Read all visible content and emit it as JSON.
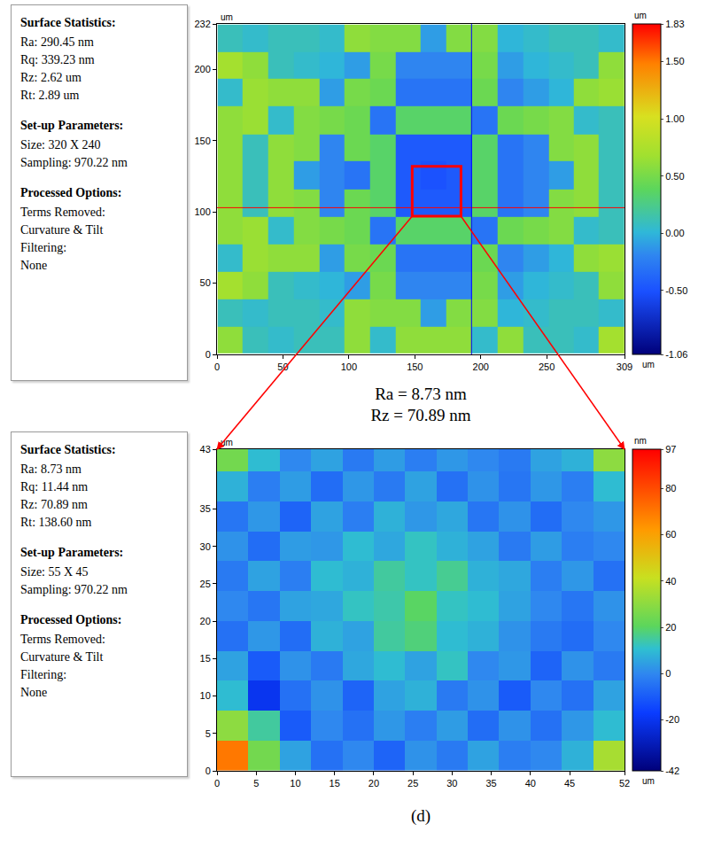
{
  "chart_data": [
    {
      "type": "heatmap",
      "x": [
        10,
        29,
        48,
        68,
        87,
        106,
        126,
        145,
        164,
        184,
        203,
        222,
        242,
        261,
        280,
        299
      ],
      "y": [
        10,
        29,
        48,
        68,
        87,
        106,
        126,
        145,
        164,
        184,
        203,
        222
      ],
      "z": [
        [
          0.6,
          0.1,
          0.05,
          0.1,
          0.1,
          0.6,
          0.05,
          0.6,
          0.6,
          0.6,
          0.05,
          0.6,
          0.1,
          0.1,
          0.05,
          0.7
        ],
        [
          0.1,
          0.05,
          0.1,
          0.1,
          0.05,
          0.6,
          0.55,
          0.55,
          -0.1,
          0.55,
          0.55,
          0.0,
          0.05,
          0.1,
          0.1,
          0.05
        ],
        [
          0.7,
          0.6,
          0.1,
          0.05,
          0.0,
          -0.1,
          0.5,
          -0.2,
          -0.2,
          -0.2,
          0.5,
          -0.1,
          0.0,
          0.05,
          0.1,
          0.6
        ],
        [
          0.05,
          0.65,
          0.6,
          0.6,
          -0.1,
          0.5,
          0.45,
          -0.3,
          -0.3,
          -0.3,
          0.45,
          -0.2,
          -0.1,
          0.0,
          0.6,
          0.65
        ],
        [
          0.6,
          0.65,
          0.05,
          0.55,
          0.5,
          0.45,
          -0.3,
          0.35,
          0.35,
          0.35,
          -0.3,
          0.45,
          0.5,
          0.55,
          0.05,
          0.1
        ],
        [
          0.6,
          0.1,
          0.6,
          0.55,
          -0.2,
          0.45,
          0.35,
          -0.45,
          -0.45,
          -0.45,
          0.35,
          -0.3,
          -0.2,
          0.55,
          0.6,
          0.1
        ],
        [
          0.6,
          0.1,
          0.6,
          -0.1,
          -0.2,
          -0.3,
          0.35,
          -0.45,
          -0.5,
          -0.45,
          0.35,
          -0.3,
          -0.2,
          -0.1,
          0.6,
          0.1
        ],
        [
          0.6,
          0.1,
          0.6,
          0.55,
          -0.2,
          0.45,
          0.35,
          -0.45,
          -0.45,
          -0.45,
          0.35,
          -0.3,
          -0.2,
          0.55,
          0.6,
          0.1
        ],
        [
          0.6,
          0.65,
          0.05,
          0.55,
          0.5,
          0.45,
          -0.3,
          0.35,
          0.35,
          0.35,
          -0.3,
          0.45,
          0.5,
          0.55,
          0.05,
          0.1
        ],
        [
          0.05,
          0.65,
          0.6,
          0.6,
          -0.1,
          0.5,
          0.45,
          -0.3,
          -0.3,
          -0.3,
          0.45,
          -0.2,
          -0.1,
          0.0,
          0.6,
          0.65
        ],
        [
          0.7,
          0.6,
          0.1,
          0.05,
          0.0,
          -0.1,
          0.5,
          -0.2,
          -0.2,
          -0.2,
          0.5,
          -0.1,
          0.0,
          0.05,
          0.1,
          0.6
        ],
        [
          0.1,
          0.05,
          0.1,
          0.1,
          0.05,
          0.6,
          0.55,
          0.55,
          -0.1,
          0.55,
          0.55,
          0.0,
          0.05,
          0.1,
          0.1,
          0.05
        ]
      ],
      "xlim": [
        0,
        309
      ],
      "ylim": [
        0,
        232
      ],
      "xticks": [
        0,
        50,
        100,
        150,
        200,
        250,
        309
      ],
      "yticks": [
        0,
        50,
        100,
        150,
        200,
        232
      ],
      "zlim": [
        -1.06,
        1.83
      ],
      "zticks": [
        -1.06,
        {
          "value": -0.5,
          "label": "-0.50"
        },
        {
          "value": 0,
          "label": "0.00"
        },
        {
          "value": 0.5,
          "label": "0.50"
        },
        {
          "value": 1,
          "label": "1.00"
        },
        {
          "value": 1.5,
          "label": "1.50"
        },
        1.83
      ],
      "x_unit": "um",
      "y_unit": "um",
      "z_unit": "um",
      "zoom_region": {
        "x": [
          148,
          185
        ],
        "y": [
          97,
          132
        ]
      },
      "profile_lines": {
        "x": 193,
        "y": 103
      }
    },
    {
      "type": "heatmap",
      "x": [
        2,
        6,
        10,
        14,
        18,
        22,
        26,
        30,
        34,
        38,
        42,
        46,
        50
      ],
      "y": [
        2,
        6,
        10,
        14,
        18,
        22,
        26,
        30,
        34,
        38,
        42
      ],
      "z": [
        [
          70,
          25,
          5,
          -5,
          0,
          -8,
          2,
          -3,
          5,
          -2,
          0,
          8,
          35
        ],
        [
          30,
          15,
          -10,
          0,
          -5,
          3,
          -2,
          4,
          -6,
          2,
          -5,
          3,
          10
        ],
        [
          10,
          -20,
          -5,
          2,
          -8,
          5,
          8,
          -3,
          2,
          -10,
          0,
          -5,
          5
        ],
        [
          5,
          -10,
          2,
          -3,
          6,
          10,
          5,
          12,
          0,
          3,
          -8,
          2,
          -3
        ],
        [
          -5,
          3,
          -6,
          8,
          5,
          15,
          18,
          10,
          8,
          2,
          -3,
          -6,
          0
        ],
        [
          0,
          -4,
          5,
          6,
          12,
          14,
          20,
          12,
          10,
          5,
          0,
          -4,
          2
        ],
        [
          -3,
          5,
          -2,
          10,
          8,
          15,
          12,
          16,
          8,
          6,
          -2,
          3,
          -5
        ],
        [
          2,
          -6,
          4,
          3,
          10,
          6,
          12,
          8,
          5,
          -3,
          4,
          -2,
          0
        ],
        [
          -4,
          3,
          -8,
          5,
          -2,
          8,
          3,
          6,
          -4,
          2,
          -6,
          0,
          3
        ],
        [
          8,
          -2,
          4,
          -6,
          3,
          -3,
          5,
          -5,
          2,
          -4,
          3,
          -2,
          10
        ],
        [
          25,
          10,
          0,
          5,
          -3,
          4,
          -2,
          3,
          0,
          -3,
          5,
          8,
          30
        ]
      ],
      "xlim": [
        0,
        52
      ],
      "ylim": [
        0,
        43
      ],
      "xticks": [
        0,
        5,
        10,
        15,
        20,
        25,
        30,
        35,
        40,
        45,
        52
      ],
      "yticks": [
        0,
        5,
        10,
        15,
        20,
        25,
        30,
        35,
        43
      ],
      "zlim": [
        -42,
        97
      ],
      "zticks": [
        -42,
        -20,
        0,
        20,
        40,
        60,
        80,
        97
      ],
      "x_unit": "um",
      "y_unit": "um",
      "z_unit": "nm"
    }
  ],
  "stats_boxes": [
    [
      {
        "title": "Surface Statistics:",
        "lines": [
          "Ra: 290.45 nm",
          "Rq: 339.23 nm",
          "Rz: 2.62 um",
          "Rt: 2.89 um"
        ]
      },
      {
        "title": "Set-up Parameters:",
        "lines": [
          "Size: 320 X 240",
          "Sampling: 970.22 nm"
        ]
      },
      {
        "title": "Processed Options:",
        "lines": [
          "Terms Removed:",
          "Curvature & Tilt",
          "Filtering:",
          "None"
        ]
      }
    ],
    [
      {
        "title": "Surface Statistics:",
        "lines": [
          "Ra: 8.73 nm",
          "Rq: 11.44 nm",
          "Rz: 70.89 nm",
          "Rt: 138.60 nm"
        ]
      },
      {
        "title": "Set-up Parameters:",
        "lines": [
          "Size: 55 X 45",
          "Sampling: 970.22 nm"
        ]
      },
      {
        "title": "Processed Options:",
        "lines": [
          "Terms Removed:",
          "Curvature & Tilt",
          "Filtering:",
          "None"
        ]
      }
    ]
  ],
  "zoom_labels": [
    "Ra = 8.73 nm",
    "Rz = 70.89 nm"
  ],
  "caption": "(d)"
}
